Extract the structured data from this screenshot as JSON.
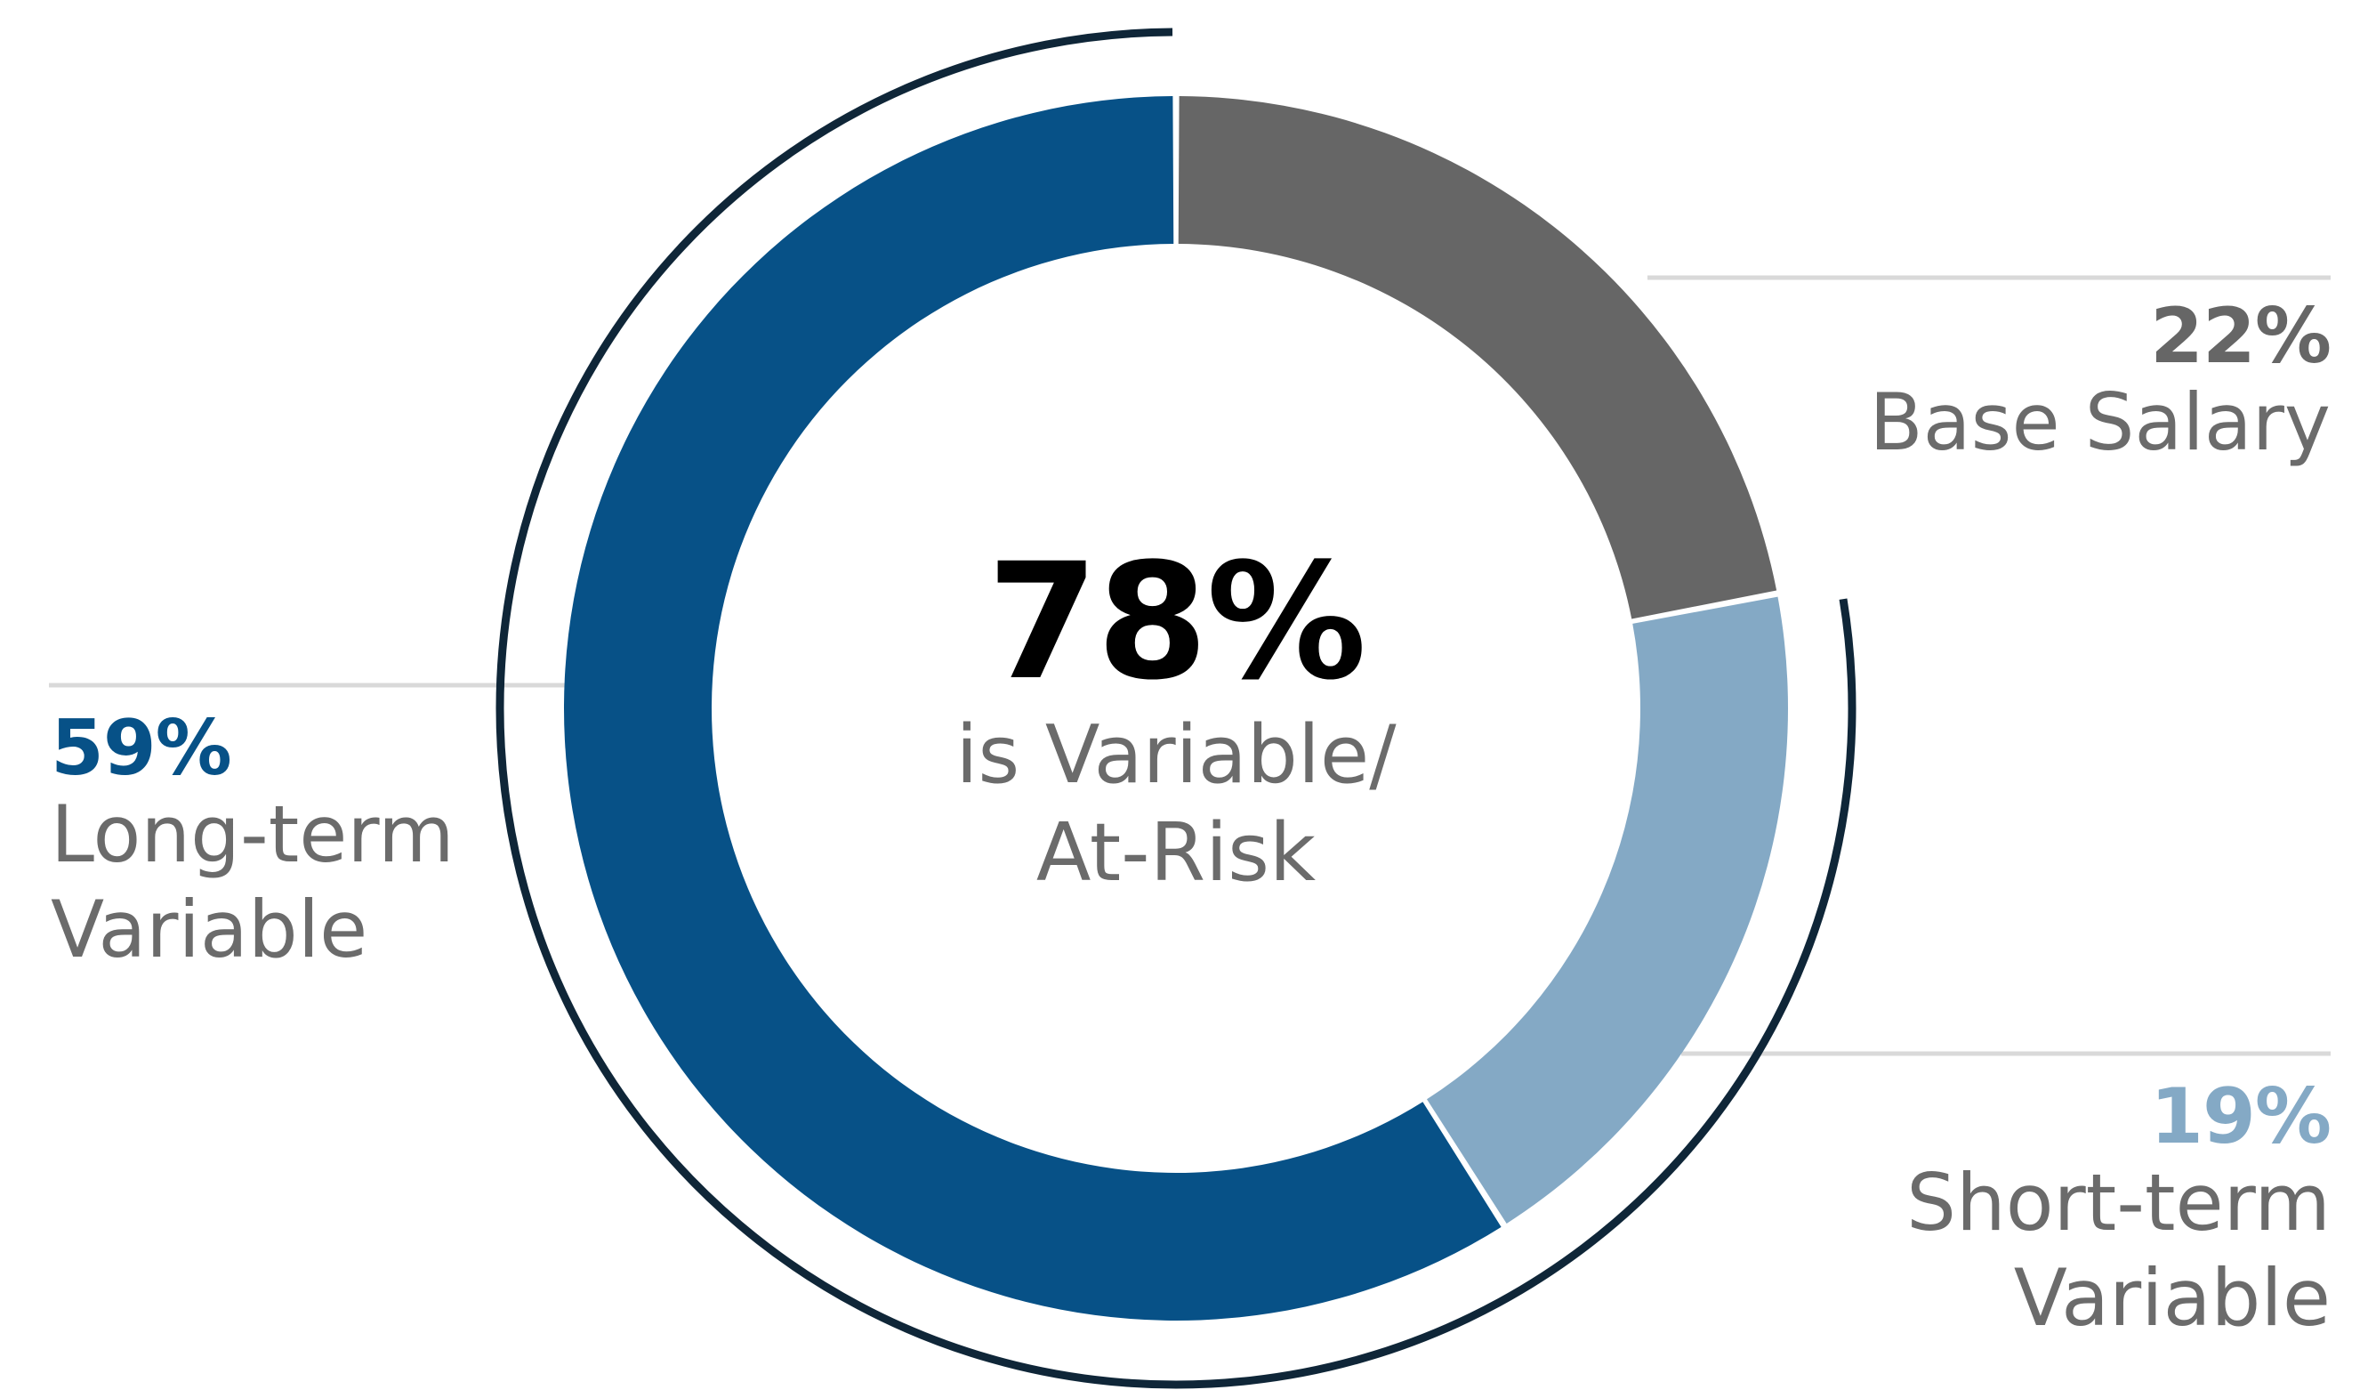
{
  "chart_data": {
    "type": "donut",
    "title": "",
    "center": {
      "value": "78%",
      "caption_line1": "is Variable/",
      "caption_line2": "At-Risk"
    },
    "slices": [
      {
        "label_line1": "Base Salary",
        "label_line2": "",
        "value": 22,
        "display": "22%",
        "color": "#666666"
      },
      {
        "label_line1": "Short-term",
        "label_line2": "Variable",
        "value": 19,
        "display": "19%",
        "color": "#84a9c5"
      },
      {
        "label_line1": "Long-term",
        "label_line2": "Variable",
        "value": 59,
        "display": "59%",
        "color": "#075187"
      }
    ],
    "variable_bracket": {
      "value": 78,
      "color": "#0f2638"
    },
    "label_colors": {
      "base": "#666666",
      "short": "#84a9c5",
      "long": "#075187",
      "name_text": "#6b6b6b",
      "leader_line": "#d9d9d9"
    }
  }
}
